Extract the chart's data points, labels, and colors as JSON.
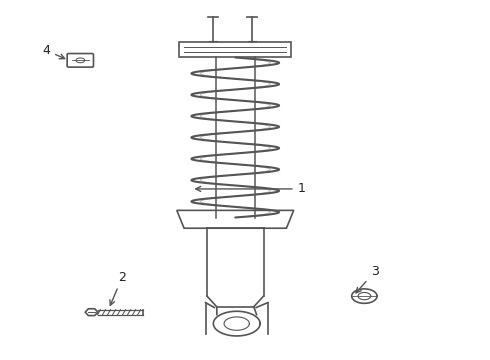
{
  "bg_color": "#ffffff",
  "line_color": "#555555",
  "label_color": "#222222",
  "fig_width": 4.9,
  "fig_height": 3.6,
  "dpi": 100
}
